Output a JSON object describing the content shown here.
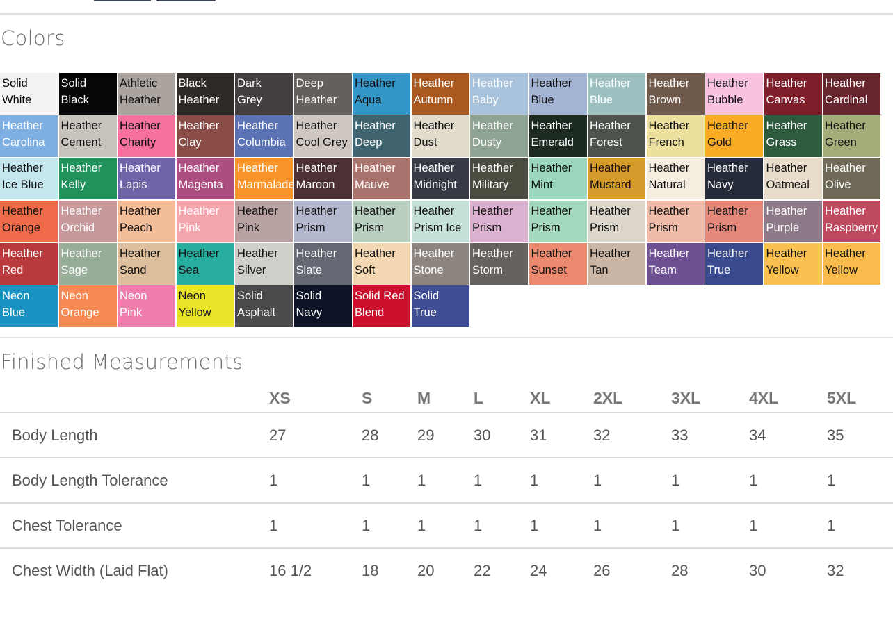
{
  "colors_heading": "Colors",
  "measurements_heading": "Finished Measurements",
  "swatches": [
    {
      "l1": "Solid",
      "l2": "White",
      "bg": "#f2f2f4",
      "fg": "#000"
    },
    {
      "l1": "Solid",
      "l2": "Black",
      "bg": "#060606",
      "fg": "#fff"
    },
    {
      "l1": "Athletic",
      "l2": "Heather",
      "bg": "#aaa39e",
      "fg": "#111"
    },
    {
      "l1": "Black",
      "l2": "Heather",
      "bg": "#2e2a28",
      "fg": "#fff"
    },
    {
      "l1": "Dark",
      "l2": "Grey",
      "bg": "#443f3e",
      "fg": "#fff"
    },
    {
      "l1": "Deep",
      "l2": "Heather",
      "bg": "#66605d",
      "fg": "#fff"
    },
    {
      "l1": "Heather",
      "l2": "Aqua",
      "bg": "#3496c6",
      "fg": "#111"
    },
    {
      "l1": "Heather",
      "l2": "Autumn",
      "bg": "#a9581f",
      "fg": "#fff"
    },
    {
      "l1": "Heather",
      "l2": "Baby",
      "bg": "#a9c2dc",
      "fg": "#fff"
    },
    {
      "l1": "Heather",
      "l2": "Blue",
      "bg": "#a3b3d4",
      "fg": "#111"
    },
    {
      "l1": "Heather",
      "l2": "Blue",
      "bg": "#9dbfbf",
      "fg": "#fff"
    },
    {
      "l1": "Heather",
      "l2": "Brown",
      "bg": "#6f5a4c",
      "fg": "#fff"
    },
    {
      "l1": "Heather",
      "l2": "Bubble",
      "bg": "#f9c3e0",
      "fg": "#111"
    },
    {
      "l1": "Heather",
      "l2": "Canvas",
      "bg": "#7e1e2a",
      "fg": "#fff"
    },
    {
      "l1": "Heather",
      "l2": "Cardinal",
      "bg": "#66242c",
      "fg": "#fff"
    },
    {
      "l1": "Heather",
      "l2": "Carolina",
      "bg": "#7fb0e3",
      "fg": "#fff"
    },
    {
      "l1": "Heather",
      "l2": "Cement",
      "bg": "#c8c4bd",
      "fg": "#111"
    },
    {
      "l1": "Heather",
      "l2": "Charity",
      "bg": "#f5709b",
      "fg": "#111"
    },
    {
      "l1": "Heather",
      "l2": "Clay",
      "bg": "#8a4c46",
      "fg": "#fff"
    },
    {
      "l1": "Heather",
      "l2": "Columbia",
      "bg": "#5c74b6",
      "fg": "#fff"
    },
    {
      "l1": "Heather",
      "l2": "Cool Grey",
      "bg": "#cfc8c2",
      "fg": "#111"
    },
    {
      "l1": "Heather",
      "l2": "Deep",
      "bg": "#3f6470",
      "fg": "#fff"
    },
    {
      "l1": "Heather",
      "l2": "Dust",
      "bg": "#e2dccd",
      "fg": "#111"
    },
    {
      "l1": "Heather",
      "l2": "Dusty",
      "bg": "#8fa393",
      "fg": "#fff"
    },
    {
      "l1": "Heather",
      "l2": "Emerald",
      "bg": "#1c2a22",
      "fg": "#fff"
    },
    {
      "l1": "Heather",
      "l2": "Forest",
      "bg": "#4d544e",
      "fg": "#fff"
    },
    {
      "l1": "Heather",
      "l2": "French",
      "bg": "#ede09f",
      "fg": "#111"
    },
    {
      "l1": "Heather",
      "l2": "Gold",
      "bg": "#f9ab25",
      "fg": "#111"
    },
    {
      "l1": "Heather",
      "l2": "Grass",
      "bg": "#2e5a3e",
      "fg": "#fff"
    },
    {
      "l1": "Heather",
      "l2": "Green",
      "bg": "#a3ad7a",
      "fg": "#111"
    },
    {
      "l1": "Heather",
      "l2": "Ice Blue",
      "bg": "#c6e6ee",
      "fg": "#111"
    },
    {
      "l1": "Heather",
      "l2": "Kelly",
      "bg": "#22925c",
      "fg": "#fff"
    },
    {
      "l1": "Heather",
      "l2": "Lapis",
      "bg": "#7063a8",
      "fg": "#fff"
    },
    {
      "l1": "Heather",
      "l2": "Magenta",
      "bg": "#ac4f80",
      "fg": "#fff"
    },
    {
      "l1": "Heather",
      "l2": "Marmalade",
      "bg": "#f8952a",
      "fg": "#fff"
    },
    {
      "l1": "Heather",
      "l2": "Maroon",
      "bg": "#4b3133",
      "fg": "#fff"
    },
    {
      "l1": "Heather",
      "l2": "Mauve",
      "bg": "#a8736c",
      "fg": "#fff"
    },
    {
      "l1": "Heather",
      "l2": "Midnight",
      "bg": "#373a44",
      "fg": "#fff"
    },
    {
      "l1": "Heather",
      "l2": "Military",
      "bg": "#4a4c40",
      "fg": "#fff"
    },
    {
      "l1": "Heather",
      "l2": "Mint",
      "bg": "#9ad7bd",
      "fg": "#111"
    },
    {
      "l1": "Heather",
      "l2": "Mustard",
      "bg": "#d59c2b",
      "fg": "#111"
    },
    {
      "l1": "Heather",
      "l2": "Natural",
      "bg": "#f5ede0",
      "fg": "#111"
    },
    {
      "l1": "Heather",
      "l2": "Navy",
      "bg": "#272c3a",
      "fg": "#fff"
    },
    {
      "l1": "Heather",
      "l2": "Oatmeal",
      "bg": "#e8ddcb",
      "fg": "#111"
    },
    {
      "l1": "Heather",
      "l2": "Olive",
      "bg": "#6f6a58",
      "fg": "#fff"
    },
    {
      "l1": "Heather",
      "l2": "Orange",
      "bg": "#ef6a48",
      "fg": "#111"
    },
    {
      "l1": "Heather",
      "l2": "Orchid",
      "bg": "#c69a9b",
      "fg": "#fff"
    },
    {
      "l1": "Heather",
      "l2": "Peach",
      "bg": "#f3bd9a",
      "fg": "#111"
    },
    {
      "l1": "Heather",
      "l2": "Pink",
      "bg": "#f4a6ae",
      "fg": "#fff"
    },
    {
      "l1": "Heather",
      "l2": "Pink",
      "bg": "#b7a2a1",
      "fg": "#111"
    },
    {
      "l1": "Heather",
      "l2": "Prism",
      "bg": "#b4b8cf",
      "fg": "#111"
    },
    {
      "l1": "Heather",
      "l2": "Prism",
      "bg": "#b9cfc0",
      "fg": "#111"
    },
    {
      "l1": "Heather",
      "l2": "Prism Ice",
      "bg": "#c5e0d8",
      "fg": "#111"
    },
    {
      "l1": "Heather",
      "l2": "Prism",
      "bg": "#dcb1cf",
      "fg": "#111"
    },
    {
      "l1": "Heather",
      "l2": "Prism",
      "bg": "#a4d9bd",
      "fg": "#111"
    },
    {
      "l1": "Heather",
      "l2": "Prism",
      "bg": "#ddd7cb",
      "fg": "#111"
    },
    {
      "l1": "Heather",
      "l2": "Prism",
      "bg": "#efbcaa",
      "fg": "#111"
    },
    {
      "l1": "Heather",
      "l2": "Prism",
      "bg": "#e6877b",
      "fg": "#111"
    },
    {
      "l1": "Heather",
      "l2": "Purple",
      "bg": "#8d7a88",
      "fg": "#fff"
    },
    {
      "l1": "Heather",
      "l2": "Raspberry",
      "bg": "#bf4a60",
      "fg": "#fff"
    },
    {
      "l1": "Heather",
      "l2": "Red",
      "bg": "#b93a3d",
      "fg": "#fff"
    },
    {
      "l1": "Heather",
      "l2": "Sage",
      "bg": "#98ad98",
      "fg": "#fff"
    },
    {
      "l1": "Heather",
      "l2": "Sand",
      "bg": "#ddbf9d",
      "fg": "#111"
    },
    {
      "l1": "Heather",
      "l2": "Sea",
      "bg": "#28ae9f",
      "fg": "#111"
    },
    {
      "l1": "Heather",
      "l2": "Silver",
      "bg": "#d0cfca",
      "fg": "#111"
    },
    {
      "l1": "Heather",
      "l2": "Slate",
      "bg": "#636872",
      "fg": "#fff"
    },
    {
      "l1": "Heather",
      "l2": "Soft",
      "bg": "#f4d8b3",
      "fg": "#111"
    },
    {
      "l1": "Heather",
      "l2": "Stone",
      "bg": "#8d8680",
      "fg": "#fff"
    },
    {
      "l1": "Heather",
      "l2": "Storm",
      "bg": "#66625e",
      "fg": "#fff"
    },
    {
      "l1": "Heather",
      "l2": "Sunset",
      "bg": "#ec8a70",
      "fg": "#111"
    },
    {
      "l1": "Heather",
      "l2": "Tan",
      "bg": "#cbb6a5",
      "fg": "#111"
    },
    {
      "l1": "Heather",
      "l2": "Team",
      "bg": "#6e5192",
      "fg": "#fff"
    },
    {
      "l1": "Heather",
      "l2": "True",
      "bg": "#394a8e",
      "fg": "#fff"
    },
    {
      "l1": "Heather",
      "l2": "Yellow",
      "bg": "#fbc150",
      "fg": "#111"
    },
    {
      "l1": "Heather",
      "l2": "Yellow",
      "bg": "#f8bb4c",
      "fg": "#111"
    },
    {
      "l1": "Neon",
      "l2": "Blue",
      "bg": "#1993c2",
      "fg": "#fff"
    },
    {
      "l1": "Neon",
      "l2": "Orange",
      "bg": "#f68a52",
      "fg": "#fff"
    },
    {
      "l1": "Neon",
      "l2": "Pink",
      "bg": "#f07ead",
      "fg": "#fff"
    },
    {
      "l1": "Neon",
      "l2": "Yellow",
      "bg": "#ebe52a",
      "fg": "#111"
    },
    {
      "l1": "Solid",
      "l2": "Asphalt",
      "bg": "#4a4a4c",
      "fg": "#fff"
    },
    {
      "l1": "Solid",
      "l2": "Navy",
      "bg": "#0d1428",
      "fg": "#fff"
    },
    {
      "l1": "Solid Red",
      "l2": "Blend",
      "bg": "#cb0f2d",
      "fg": "#fff"
    },
    {
      "l1": "Solid",
      "l2": "True",
      "bg": "#3f4d95",
      "fg": "#fff"
    }
  ],
  "table": {
    "sizes": [
      "XS",
      "S",
      "M",
      "L",
      "XL",
      "2XL",
      "3XL",
      "4XL",
      "5XL"
    ],
    "rows": [
      {
        "label": "Body Length",
        "values": [
          "27",
          "28",
          "29",
          "30",
          "31",
          "32",
          "33",
          "34",
          "35"
        ]
      },
      {
        "label": "Body Length Tolerance",
        "values": [
          "1",
          "1",
          "1",
          "1",
          "1",
          "1",
          "1",
          "1",
          "1"
        ]
      },
      {
        "label": "Chest Tolerance",
        "values": [
          "1",
          "1",
          "1",
          "1",
          "1",
          "1",
          "1",
          "1",
          "1"
        ]
      },
      {
        "label": "Chest Width (Laid Flat)",
        "values": [
          "16 1/2",
          "18",
          "20",
          "22",
          "24",
          "26",
          "28",
          "30",
          "32"
        ]
      }
    ]
  }
}
